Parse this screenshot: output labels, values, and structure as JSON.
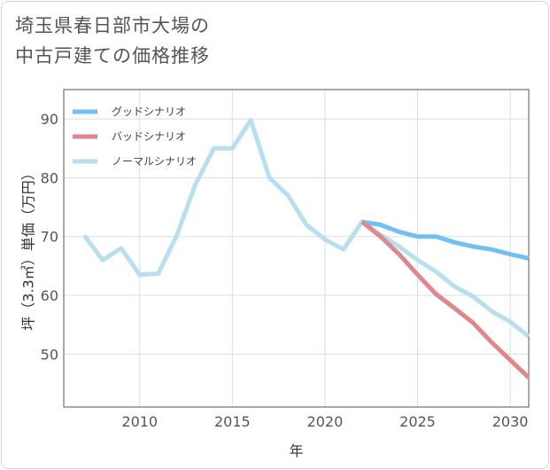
{
  "title": {
    "line1": "埼玉県春日部市大場の",
    "line2": "中古戸建ての価格推移"
  },
  "chart_data": {
    "type": "line",
    "xlabel": "年",
    "ylabel": "坪（3.3㎡）単価（万円）",
    "xlim": [
      2005.9,
      2031
    ],
    "ylim": [
      41,
      95
    ],
    "xticks": [
      2010,
      2015,
      2020,
      2025,
      2030
    ],
    "yticks": [
      50,
      60,
      70,
      80,
      90
    ],
    "grid": true,
    "legend_position": "top-left",
    "series": [
      {
        "name": "グッドシナリオ",
        "color": "#72bff2",
        "x": [
          2022,
          2023,
          2024,
          2025,
          2026,
          2027,
          2028,
          2029,
          2030,
          2031
        ],
        "y": [
          72.5,
          72.0,
          70.8,
          70.0,
          70.0,
          69.0,
          68.3,
          67.8,
          67.0,
          66.3
        ]
      },
      {
        "name": "バッドシナリオ",
        "color": "#e0878e",
        "x": [
          2022,
          2023,
          2024,
          2025,
          2026,
          2027,
          2028,
          2029,
          2030,
          2031
        ],
        "y": [
          72.5,
          70.0,
          67.0,
          63.5,
          60.2,
          57.8,
          55.3,
          52.0,
          49.0,
          46.0
        ]
      },
      {
        "name": "ノーマルシナリオ",
        "color": "#b9dfee",
        "x": [
          2007,
          2008,
          2009,
          2010,
          2011,
          2012,
          2013,
          2014,
          2015,
          2016,
          2017,
          2018,
          2019,
          2020,
          2021,
          2022,
          2023,
          2024,
          2025,
          2026,
          2027,
          2028,
          2029,
          2030,
          2031
        ],
        "y": [
          70.2,
          66.0,
          68.0,
          63.5,
          63.7,
          70.2,
          78.8,
          85.0,
          85.0,
          89.8,
          80.0,
          77.0,
          72.0,
          69.5,
          67.8,
          72.5,
          70.3,
          68.3,
          66.0,
          64.0,
          61.5,
          59.8,
          57.3,
          55.5,
          53.0
        ]
      }
    ]
  }
}
